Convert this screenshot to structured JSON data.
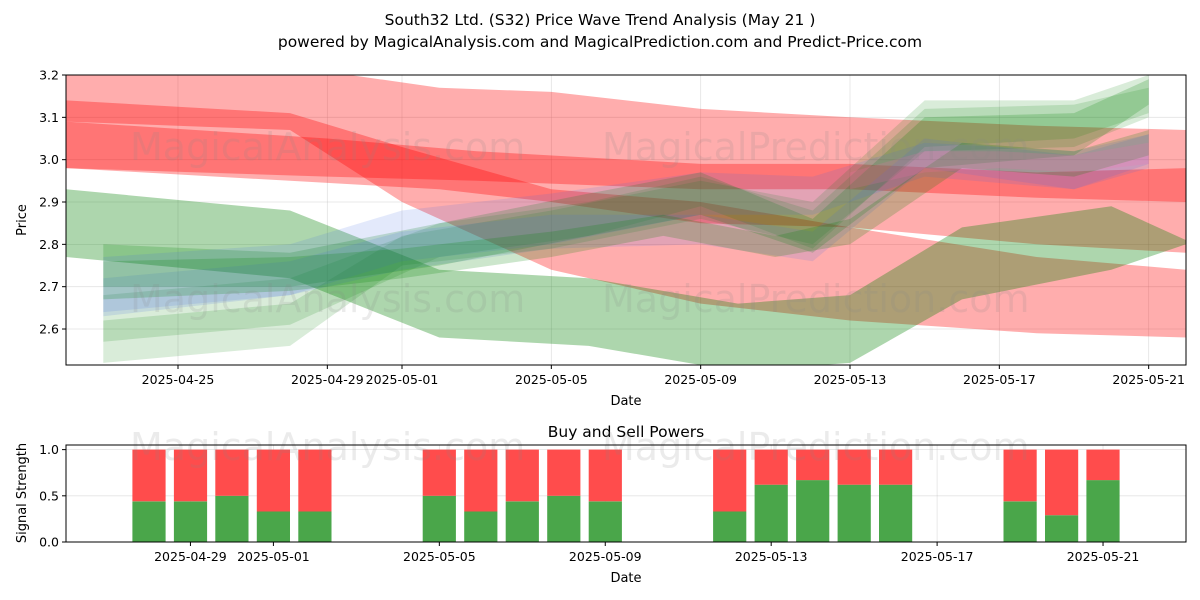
{
  "figure": {
    "title": "South32 Ltd. (S32) Price Wave Trend Analysis (May 21 )",
    "subtitle": "powered by MagicalAnalysis.com and MagicalPrediction.com and Predict-Price.com",
    "watermarks": [
      "MagicalAnalysis.com",
      "MagicalPrediction.com"
    ]
  },
  "chart_data": [
    {
      "type": "area",
      "title": "",
      "xlabel": "Date",
      "ylabel": "Price",
      "xlim": [
        "2025-04-22",
        "2025-05-22"
      ],
      "ylim": [
        2.515,
        3.2
      ],
      "y_ticks": [
        "2.6",
        "2.7",
        "2.8",
        "2.9",
        "3.0",
        "3.1",
        "3.2"
      ],
      "y_tick_values": [
        2.6,
        2.7,
        2.8,
        2.9,
        3.0,
        3.1,
        3.2
      ],
      "x_ticks": [
        "2025-04-25",
        "2025-04-29",
        "2025-05-01",
        "2025-05-05",
        "2025-05-09",
        "2025-05-13",
        "2025-05-17",
        "2025-05-21"
      ],
      "grid": true,
      "bands": [
        {
          "color": "#ff0000",
          "opacity": 0.32,
          "x": [
            "2025-04-22",
            "2025-04-28",
            "2025-05-02",
            "2025-05-05",
            "2025-05-09",
            "2025-05-13",
            "2025-05-18",
            "2025-05-22"
          ],
          "upper": [
            3.22,
            3.22,
            3.17,
            3.16,
            3.12,
            3.1,
            3.08,
            3.07
          ],
          "lower": [
            2.98,
            2.95,
            2.93,
            2.9,
            2.85,
            2.84,
            2.8,
            2.78
          ]
        },
        {
          "color": "#ff0000",
          "opacity": 0.32,
          "x": [
            "2025-04-22",
            "2025-04-28",
            "2025-05-01",
            "2025-05-05",
            "2025-05-09",
            "2025-05-13",
            "2025-05-18",
            "2025-05-22"
          ],
          "upper": [
            3.14,
            3.11,
            3.03,
            2.93,
            2.9,
            2.84,
            2.77,
            2.74
          ],
          "lower": [
            3.09,
            3.07,
            2.9,
            2.74,
            2.66,
            2.62,
            2.59,
            2.58
          ]
        },
        {
          "color": "#ff0000",
          "opacity": 0.32,
          "x": [
            "2025-04-22",
            "2025-04-29",
            "2025-05-03",
            "2025-05-09",
            "2025-05-13",
            "2025-05-18",
            "2025-05-22"
          ],
          "upper": [
            3.09,
            3.05,
            3.02,
            2.99,
            2.99,
            2.97,
            2.98
          ],
          "lower": [
            2.98,
            2.96,
            2.95,
            2.93,
            2.93,
            2.91,
            2.9
          ]
        },
        {
          "color": "#008000",
          "opacity": 0.32,
          "x": [
            "2025-04-22",
            "2025-04-28",
            "2025-05-02",
            "2025-05-06",
            "2025-05-10",
            "2025-05-13",
            "2025-05-16",
            "2025-05-20",
            "2025-05-22"
          ],
          "upper": [
            2.93,
            2.88,
            2.74,
            2.72,
            2.66,
            2.68,
            2.84,
            2.89,
            2.81
          ],
          "lower": [
            2.77,
            2.72,
            2.58,
            2.56,
            2.5,
            2.52,
            2.67,
            2.74,
            2.8
          ]
        },
        {
          "color": "#008000",
          "opacity": 0.2,
          "x": [
            "2025-04-23",
            "2025-04-28",
            "2025-05-02",
            "2025-05-06",
            "2025-05-09",
            "2025-05-12",
            "2025-05-15",
            "2025-05-19",
            "2025-05-21"
          ],
          "upper": [
            2.8,
            2.78,
            2.85,
            2.92,
            2.97,
            2.86,
            3.1,
            3.11,
            3.19
          ],
          "lower": [
            2.7,
            2.7,
            2.75,
            2.82,
            2.87,
            2.78,
            2.98,
            3.01,
            3.13
          ]
        },
        {
          "color": "#008000",
          "opacity": 0.15,
          "x": [
            "2025-04-23",
            "2025-04-28",
            "2025-05-02",
            "2025-05-06",
            "2025-05-09",
            "2025-05-12",
            "2025-05-15",
            "2025-05-19",
            "2025-05-21"
          ],
          "upper": [
            2.68,
            2.72,
            2.85,
            2.9,
            2.96,
            2.88,
            3.12,
            3.13,
            3.17
          ],
          "lower": [
            2.57,
            2.61,
            2.77,
            2.82,
            2.89,
            2.79,
            3.03,
            3.05,
            3.11
          ]
        },
        {
          "color": "#008000",
          "opacity": 0.15,
          "x": [
            "2025-04-23",
            "2025-04-28",
            "2025-05-01",
            "2025-05-05",
            "2025-05-09",
            "2025-05-12",
            "2025-05-15",
            "2025-05-19",
            "2025-05-21"
          ],
          "upper": [
            2.62,
            2.66,
            2.82,
            2.88,
            2.95,
            2.9,
            3.14,
            3.14,
            3.2
          ],
          "lower": [
            2.52,
            2.56,
            2.75,
            2.79,
            2.86,
            2.8,
            3.02,
            3.03,
            3.1
          ]
        },
        {
          "color": "#4169e1",
          "opacity": 0.15,
          "x": [
            "2025-04-23",
            "2025-04-28",
            "2025-05-01",
            "2025-05-05",
            "2025-05-09",
            "2025-05-12",
            "2025-05-15",
            "2025-05-19",
            "2025-05-21"
          ],
          "upper": [
            2.77,
            2.8,
            2.88,
            2.92,
            2.97,
            2.96,
            3.04,
            3.02,
            3.06
          ],
          "lower": [
            2.63,
            2.68,
            2.76,
            2.8,
            2.87,
            2.87,
            2.96,
            2.93,
            2.98
          ]
        },
        {
          "color": "#4169e1",
          "opacity": 0.15,
          "x": [
            "2025-04-23",
            "2025-04-28",
            "2025-05-01",
            "2025-05-05",
            "2025-05-09",
            "2025-05-12",
            "2025-05-15",
            "2025-05-19",
            "2025-05-21"
          ],
          "upper": [
            2.72,
            2.76,
            2.83,
            2.87,
            2.87,
            2.83,
            3.05,
            3.01,
            3.06
          ],
          "lower": [
            2.64,
            2.68,
            2.74,
            2.79,
            2.8,
            2.76,
            2.98,
            2.93,
            2.99
          ]
        },
        {
          "color": "#008000",
          "opacity": 0.2,
          "x": [
            "2025-04-23",
            "2025-04-28",
            "2025-05-01",
            "2025-05-05",
            "2025-05-08",
            "2025-05-11",
            "2025-05-13",
            "2025-05-16",
            "2025-05-19",
            "2025-05-21"
          ],
          "upper": [
            2.76,
            2.77,
            2.79,
            2.83,
            2.87,
            2.82,
            2.86,
            3.04,
            3.02,
            3.07
          ],
          "lower": [
            2.67,
            2.69,
            2.72,
            2.77,
            2.82,
            2.77,
            2.8,
            2.98,
            2.96,
            3.01
          ]
        },
        {
          "color": "#ff69b4",
          "opacity": 0.18,
          "x": [
            "2025-05-13",
            "2025-05-15",
            "2025-05-17",
            "2025-05-19",
            "2025-05-21"
          ],
          "upper": [
            2.97,
            3.02,
            3.02,
            3.01,
            3.04
          ],
          "lower": [
            2.93,
            2.97,
            2.98,
            2.97,
            2.99
          ]
        }
      ]
    },
    {
      "type": "bar",
      "title": "Buy and Sell Powers",
      "xlabel": "Date",
      "ylabel": "Signal Strength",
      "xlim": [
        "2025-04-26",
        "2025-05-23"
      ],
      "ylim": [
        0,
        1.05
      ],
      "y_ticks": [
        "0.0",
        "0.5",
        "1.0"
      ],
      "y_tick_values": [
        0.0,
        0.5,
        1.0
      ],
      "x_ticks": [
        "2025-04-29",
        "2025-05-01",
        "2025-05-05",
        "2025-05-09",
        "2025-05-13",
        "2025-05-17",
        "2025-05-21"
      ],
      "grid": true,
      "buy_color": "#4aa64a",
      "sell_color": "#ff4c4c",
      "dates": [
        "2025-04-28",
        "2025-04-29",
        "2025-04-30",
        "2025-05-01",
        "2025-05-02",
        "2025-05-05",
        "2025-05-06",
        "2025-05-07",
        "2025-05-08",
        "2025-05-09",
        "2025-05-12",
        "2025-05-13",
        "2025-05-14",
        "2025-05-15",
        "2025-05-16",
        "2025-05-19",
        "2025-05-20",
        "2025-05-21"
      ],
      "buy": [
        0.44,
        0.44,
        0.5,
        0.33,
        0.33,
        0.5,
        0.33,
        0.44,
        0.5,
        0.44,
        0.33,
        0.62,
        0.67,
        0.62,
        0.62,
        0.44,
        0.29,
        0.67
      ],
      "sell": [
        0.56,
        0.56,
        0.5,
        0.67,
        0.67,
        0.5,
        0.67,
        0.56,
        0.5,
        0.56,
        0.67,
        0.38,
        0.33,
        0.38,
        0.38,
        0.56,
        0.71,
        0.33
      ]
    }
  ]
}
